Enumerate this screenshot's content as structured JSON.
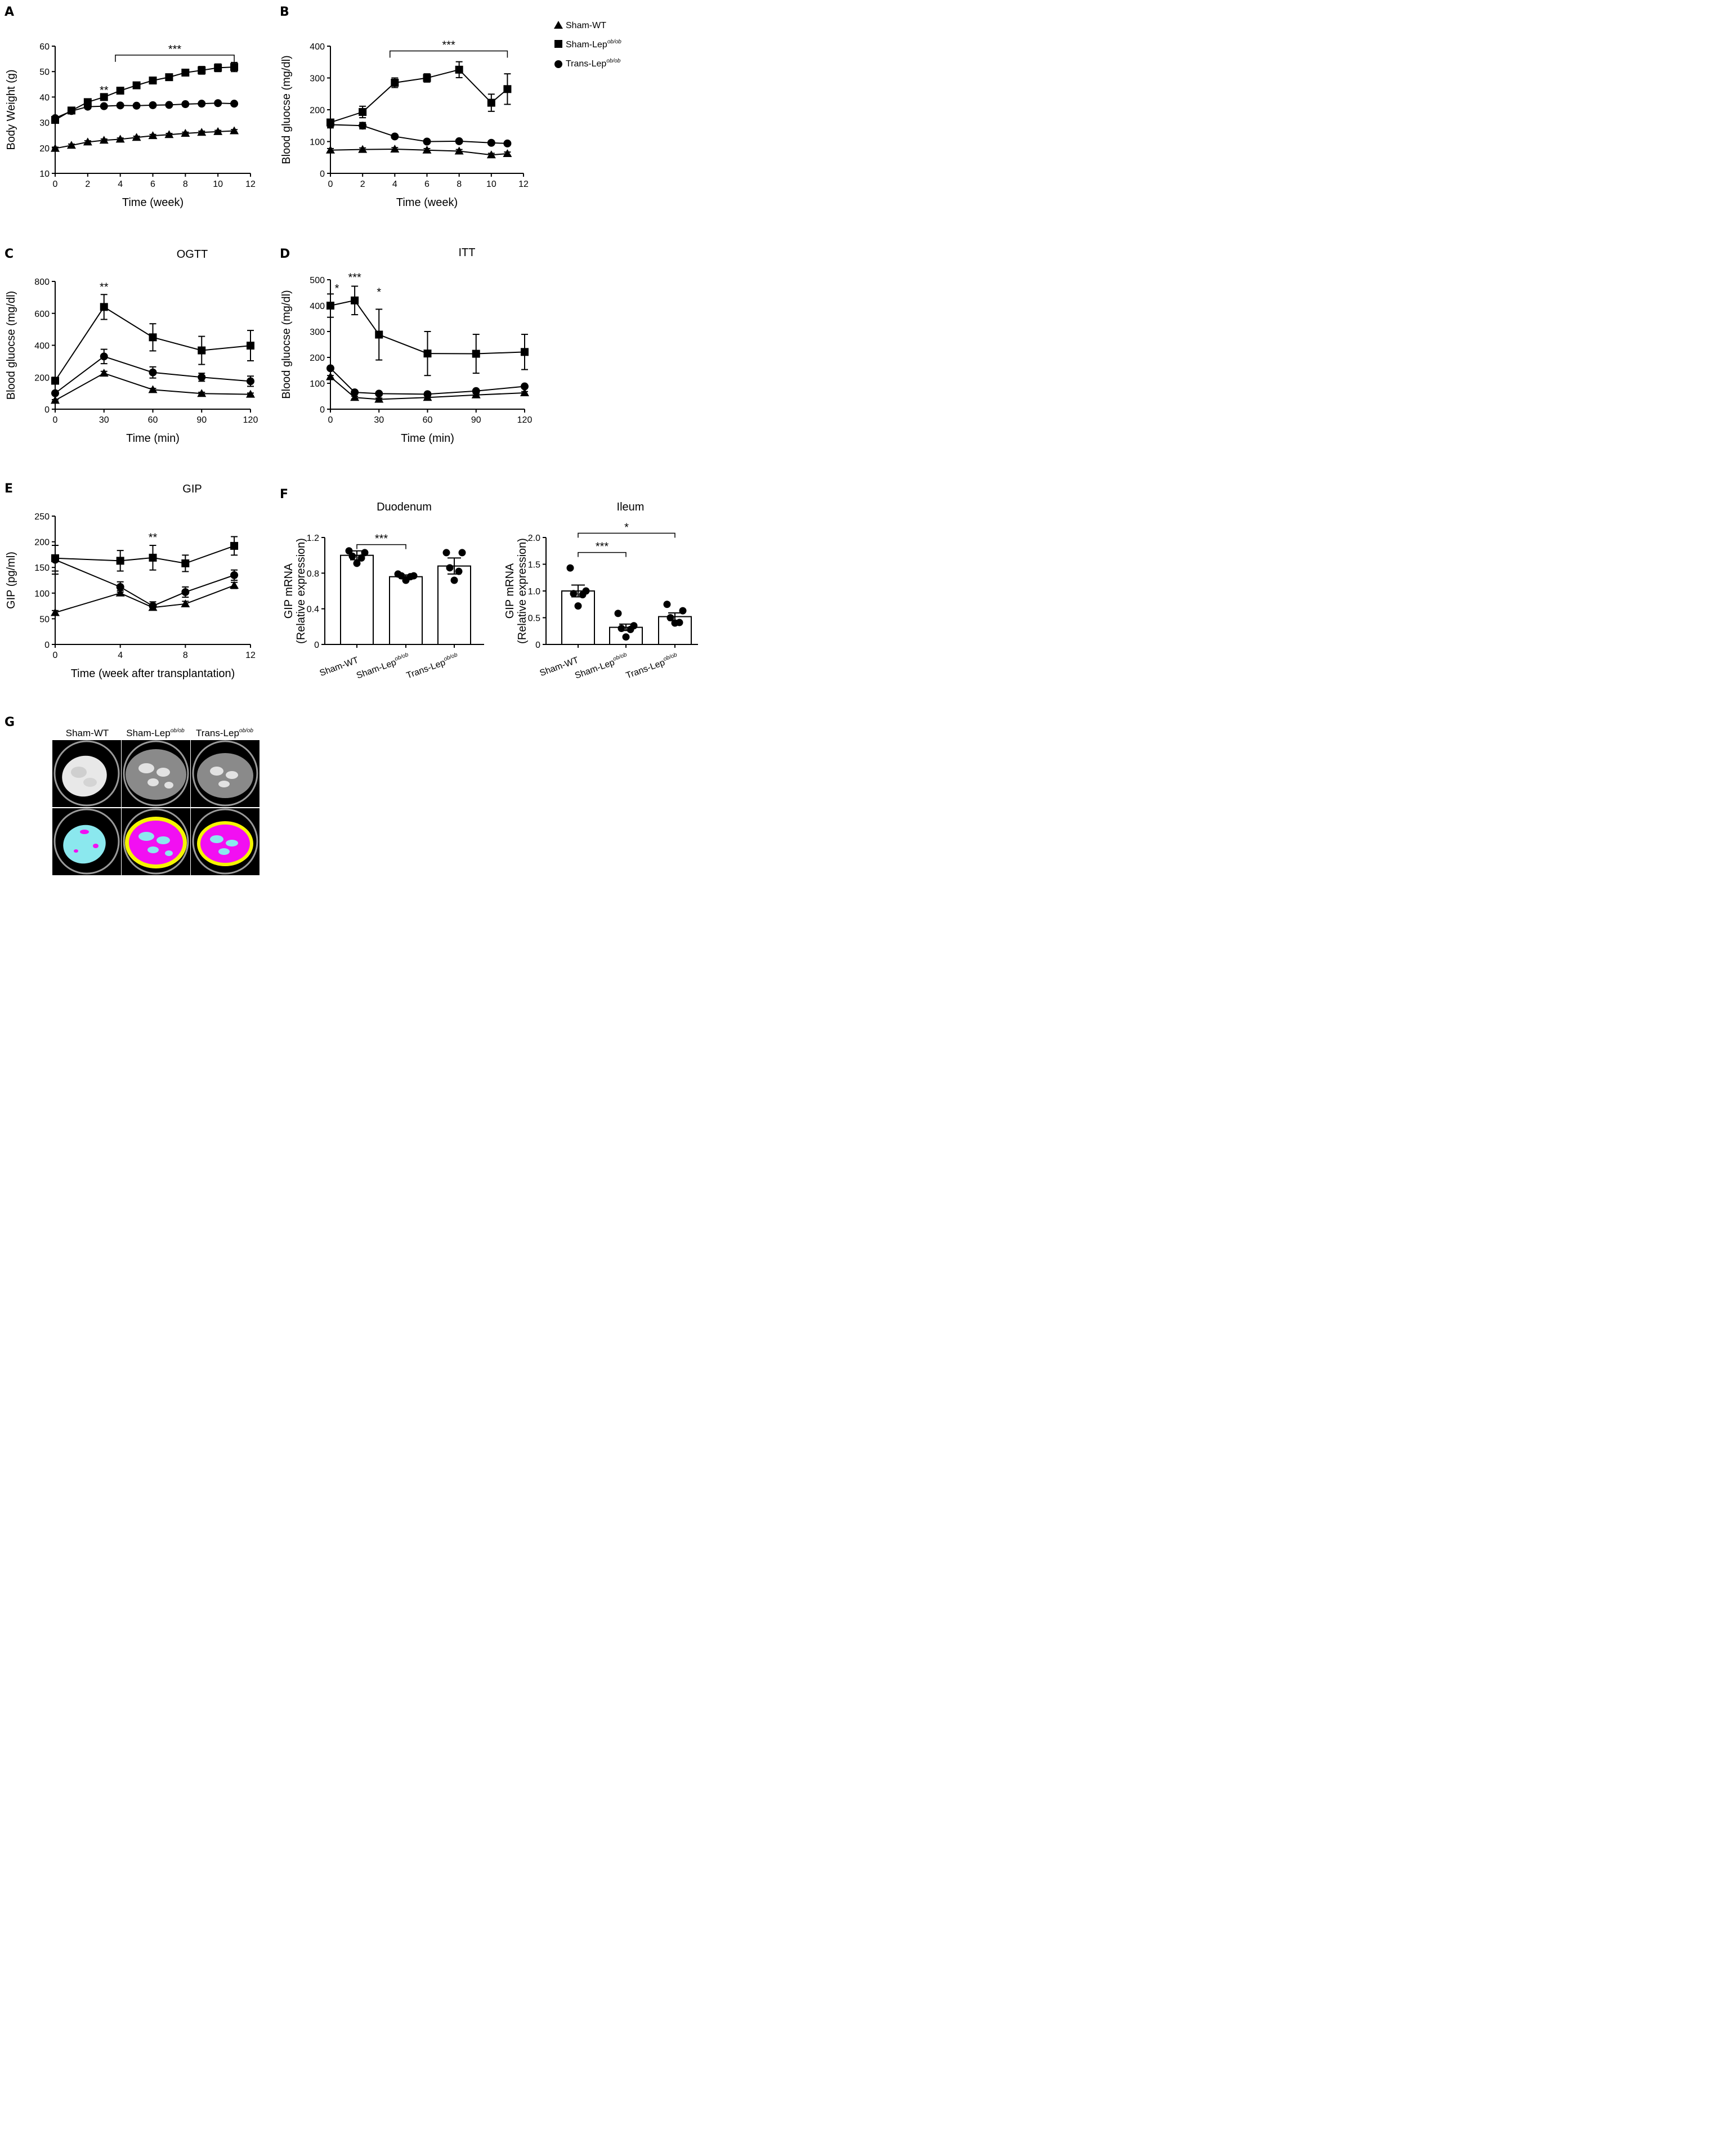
{
  "legend": {
    "series": [
      {
        "name": "Sham-WT",
        "marker": "triangle"
      },
      {
        "name": "Sham-Lep",
        "sup": "ob/ob",
        "marker": "square"
      },
      {
        "name": "Trans-Lep",
        "sup": "ob/ob",
        "marker": "circle"
      }
    ]
  },
  "chart_data": [
    {
      "panel": "A",
      "type": "line",
      "title": "",
      "xlabel": "Time (week)",
      "ylabel": "Body Weight (g)",
      "xlim": [
        0,
        12
      ],
      "ylim": [
        10,
        60
      ],
      "xticks": [
        0,
        2,
        4,
        6,
        8,
        10,
        12
      ],
      "yticks": [
        10,
        20,
        30,
        40,
        50,
        60
      ],
      "x": [
        0,
        1,
        2,
        3,
        4,
        5,
        6,
        7,
        8,
        9,
        10,
        11
      ],
      "series": [
        {
          "name": "Sham-WT",
          "marker": "triangle",
          "values": [
            19.8,
            21,
            22.3,
            23,
            23.4,
            24.1,
            24.8,
            25.2,
            25.7,
            26.1,
            26.4,
            26.7
          ],
          "err": [
            0.5,
            0.5,
            0.5,
            0.5,
            0.5,
            0.5,
            0.5,
            0.5,
            0.5,
            0.5,
            0.5,
            0.5
          ]
        },
        {
          "name": "Sham-Lep ob/ob",
          "marker": "square",
          "values": [
            31,
            34.7,
            38,
            40,
            42.5,
            44.6,
            46.5,
            47.8,
            49.6,
            50.5,
            51.5,
            51.8
          ],
          "err": [
            0.6,
            0.6,
            0.7,
            0.7,
            0.7,
            0.8,
            0.9,
            1,
            1.2,
            1.5,
            1.5,
            1.8
          ]
        },
        {
          "name": "Trans-Lep ob/ob",
          "marker": "circle",
          "values": [
            31.7,
            34.5,
            36.2,
            36.4,
            36.7,
            36.6,
            36.8,
            36.9,
            37.2,
            37.4,
            37.6,
            37.4
          ],
          "err": [
            0.5,
            0.5,
            0.5,
            0.5,
            0.5,
            0.5,
            0.5,
            0.5,
            0.5,
            0.5,
            0.5,
            0.5
          ]
        }
      ],
      "annotations": [
        {
          "text": "**",
          "x": 3,
          "y": 43
        },
        {
          "text": "***",
          "bracket": [
            3.7,
            11
          ],
          "y": 56.5
        }
      ]
    },
    {
      "panel": "B",
      "type": "line",
      "title": "",
      "xlabel": "Time (week)",
      "ylabel": "Blood gluocse (mg/dl)",
      "xlim": [
        0,
        12
      ],
      "ylim": [
        0,
        400
      ],
      "xticks": [
        0,
        2,
        4,
        6,
        8,
        10,
        12
      ],
      "yticks": [
        0,
        100,
        200,
        300,
        400
      ],
      "x": [
        0,
        2,
        4,
        6,
        8,
        10,
        11
      ],
      "series": [
        {
          "name": "Sham-WT",
          "marker": "triangle",
          "values": [
            73,
            75,
            76,
            73,
            70,
            58,
            62
          ],
          "err": [
            5,
            5,
            5,
            5,
            5,
            5,
            5
          ]
        },
        {
          "name": "Sham-Lep ob/ob",
          "marker": "square",
          "values": [
            160,
            193,
            285,
            300,
            326,
            222,
            265
          ],
          "err": [
            10,
            18,
            15,
            13,
            25,
            27,
            48
          ]
        },
        {
          "name": "Trans-Lep ob/ob",
          "marker": "circle",
          "values": [
            153,
            150,
            116,
            100,
            101,
            96,
            94
          ],
          "err": [
            10,
            10,
            5,
            5,
            5,
            5,
            5
          ]
        }
      ],
      "annotations": [
        {
          "text": "***",
          "bracket": [
            3.7,
            11
          ],
          "y": 385
        }
      ]
    },
    {
      "panel": "C",
      "type": "line",
      "title": "OGTT",
      "xlabel": "Time (min)",
      "ylabel": "Blood gluocse (mg/dl)",
      "xlim": [
        0,
        120
      ],
      "ylim": [
        0,
        800
      ],
      "xticks": [
        0,
        30,
        60,
        90,
        120
      ],
      "yticks": [
        0,
        200,
        400,
        600,
        800
      ],
      "x": [
        0,
        30,
        60,
        90,
        120
      ],
      "series": [
        {
          "name": "Sham-WT",
          "marker": "triangle",
          "values": [
            55,
            225,
            122,
            98,
            93
          ],
          "err": [
            5,
            12,
            8,
            8,
            8
          ]
        },
        {
          "name": "Sham-Lep ob/ob",
          "marker": "square",
          "values": [
            178,
            640,
            450,
            368,
            398
          ],
          "err": [
            15,
            78,
            85,
            88,
            95
          ]
        },
        {
          "name": "Trans-Lep ob/ob",
          "marker": "circle",
          "values": [
            100,
            330,
            230,
            200,
            175
          ],
          "err": [
            8,
            45,
            35,
            25,
            32
          ]
        }
      ],
      "annotations": [
        {
          "text": "**",
          "x": 30,
          "y": 770
        }
      ]
    },
    {
      "panel": "D",
      "type": "line",
      "title": "ITT",
      "xlabel": "Time (min)",
      "ylabel": "Blood gluocse (mg/dl)",
      "xlim": [
        0,
        120
      ],
      "ylim": [
        0,
        500
      ],
      "xticks": [
        0,
        30,
        60,
        90,
        120
      ],
      "yticks": [
        0,
        100,
        200,
        300,
        400,
        500
      ],
      "x": [
        0,
        15,
        30,
        60,
        90,
        120
      ],
      "series": [
        {
          "name": "Sham-WT",
          "marker": "triangle",
          "values": [
            125,
            45,
            38,
            45,
            55,
            63
          ],
          "err": [
            5,
            5,
            5,
            5,
            5,
            5
          ]
        },
        {
          "name": "Sham-Lep ob/ob",
          "marker": "square",
          "values": [
            400,
            420,
            288,
            215,
            214,
            221
          ],
          "err": [
            45,
            55,
            98,
            85,
            75,
            68
          ]
        },
        {
          "name": "Trans-Lep ob/ob",
          "marker": "circle",
          "values": [
            158,
            65,
            60,
            58,
            70,
            88
          ],
          "err": [
            5,
            5,
            5,
            5,
            5,
            5
          ]
        }
      ],
      "annotations": [
        {
          "text": "*",
          "x": 4,
          "y": 470
        },
        {
          "text": "***",
          "x": 15,
          "y": 512
        },
        {
          "text": "*",
          "x": 30,
          "y": 455
        }
      ]
    },
    {
      "panel": "E",
      "type": "line",
      "title": "GIP",
      "xlabel": "Time (week after transplantation)",
      "ylabel": "GIP (pg/ml)",
      "xlim": [
        0,
        12
      ],
      "ylim": [
        0,
        250
      ],
      "xticks": [
        0,
        4,
        8,
        12
      ],
      "yticks": [
        0,
        50,
        100,
        150,
        200,
        250
      ],
      "x": [
        0,
        4,
        6,
        8,
        11
      ],
      "series": [
        {
          "name": "Sham-WT",
          "marker": "triangle",
          "values": [
            62,
            100,
            72,
            79,
            115
          ],
          "err": [
            4,
            5,
            5,
            5,
            6
          ]
        },
        {
          "name": "Sham-Lep ob/ob",
          "marker": "square",
          "values": [
            168,
            163,
            169,
            158,
            192
          ],
          "err": [
            25,
            20,
            24,
            16,
            18
          ]
        },
        {
          "name": "Trans-Lep ob/ob",
          "marker": "circle",
          "values": [
            165,
            112,
            75,
            102,
            135
          ],
          "err": [
            28,
            10,
            8,
            10,
            10
          ]
        }
      ],
      "annotations": [
        {
          "text": "**",
          "x": 6,
          "y": 210
        }
      ]
    },
    {
      "panel": "F",
      "type": "bar",
      "title": "Duodenum",
      "ylabel": "GIP mRNA\n(Relative expression)",
      "ylim": [
        0,
        1.2
      ],
      "yticks": [
        "0",
        "0.4",
        "0.8",
        "1.2"
      ],
      "categories": [
        "Sham-WT",
        "Sham-Lep ob/ob",
        "Trans-Lep ob/ob"
      ],
      "values": [
        1.0,
        0.76,
        0.88
      ],
      "err": [
        0.05,
        0.02,
        0.09
      ],
      "points": [
        [
          1.05,
          1.03,
          0.99,
          0.97,
          0.91
        ],
        [
          0.79,
          0.77,
          0.77,
          0.76,
          0.72
        ],
        [
          1.03,
          1.03,
          0.86,
          0.82,
          0.72
        ]
      ],
      "annotations": [
        {
          "text": "***",
          "bracket": [
            0,
            1
          ],
          "y": 1.12
        }
      ]
    },
    {
      "panel": "F2",
      "type": "bar",
      "title": "Ileum",
      "ylabel": "GIP mRNA\n(Relative expression)",
      "ylim": [
        0,
        2.0
      ],
      "yticks": [
        "0",
        "0.5",
        "1.0",
        "1.5",
        "2.0"
      ],
      "categories": [
        "Sham-WT",
        "Sham-Lep ob/ob",
        "Trans-Lep ob/ob"
      ],
      "values": [
        1.0,
        0.32,
        0.52
      ],
      "err": [
        0.11,
        0.06,
        0.07
      ],
      "points": [
        [
          1.43,
          1.0,
          0.95,
          0.93,
          0.72
        ],
        [
          0.58,
          0.35,
          0.3,
          0.28,
          0.14
        ],
        [
          0.75,
          0.63,
          0.5,
          0.41,
          0.4
        ]
      ],
      "annotations": [
        {
          "text": "***",
          "bracket": [
            0,
            1
          ],
          "y": 1.72
        },
        {
          "text": "*",
          "bracket": [
            0,
            2
          ],
          "y": 2.08
        }
      ]
    }
  ],
  "panel_g": {
    "columns": [
      {
        "name": "Sham-WT"
      },
      {
        "name": "Sham-Lep",
        "sup": "ob/ob"
      },
      {
        "name": "Trans-Lep",
        "sup": "ob/ob"
      }
    ],
    "colors": {
      "visceral": "#f20ff2",
      "subcutaneous": "#f5f500",
      "lean": "#8be8ee",
      "ct_bg": "#000000",
      "ct_gray": "#8a8a8a",
      "ct_light": "#e6e6e6"
    }
  }
}
